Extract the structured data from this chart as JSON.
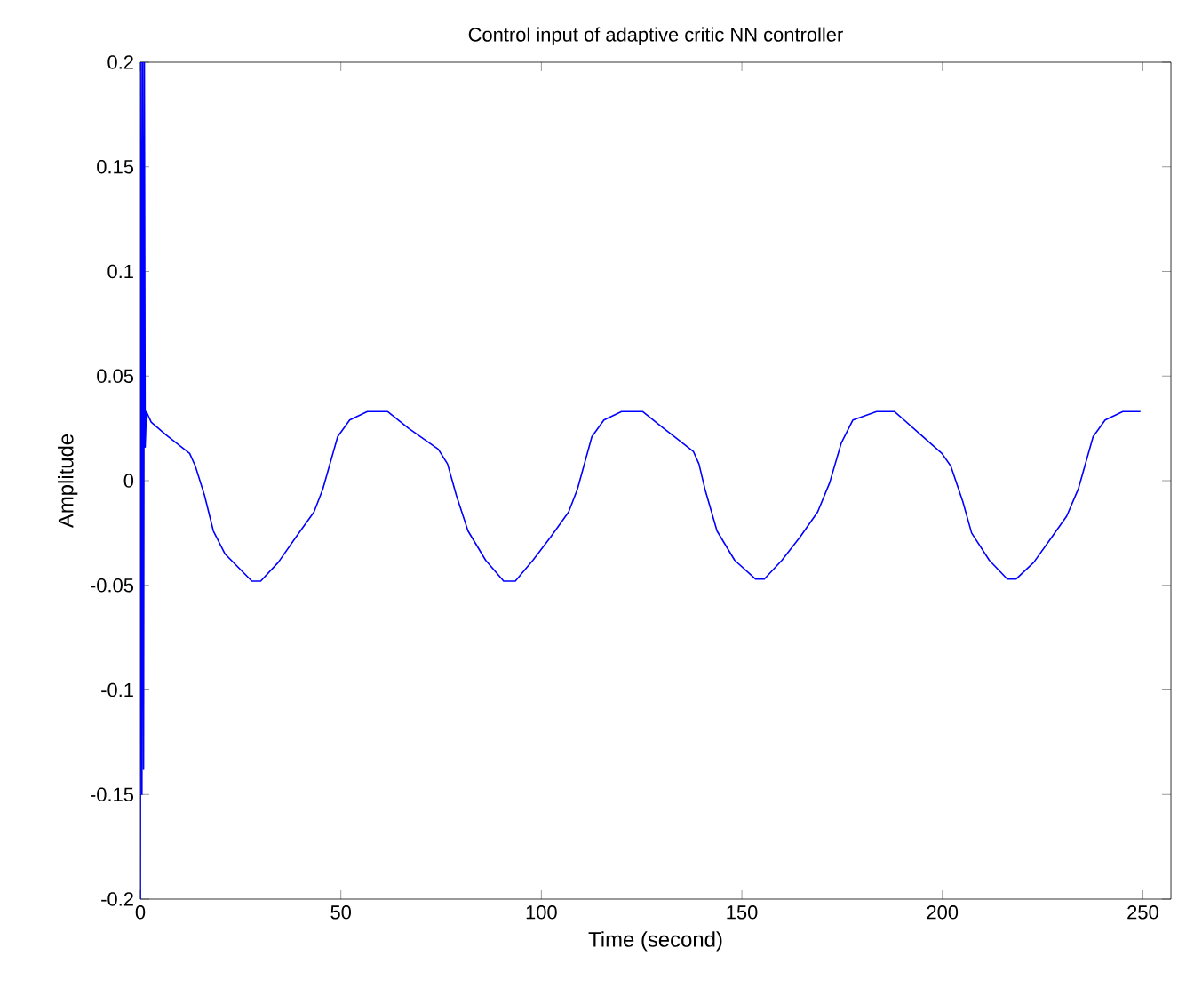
{
  "chart_data": {
    "type": "line",
    "title": "Control input of adaptive critic NN controller",
    "xlabel": "Time (second)",
    "ylabel": "Amplitude",
    "xlim": [
      0,
      257
    ],
    "ylim": [
      -0.2,
      0.2
    ],
    "xticks": [
      0,
      50,
      100,
      150,
      200,
      250
    ],
    "yticks": [
      -0.2,
      -0.15,
      -0.1,
      -0.05,
      0,
      0.05,
      0.1,
      0.15,
      0.2
    ],
    "grid": false,
    "marker": "none",
    "line_style": "solid",
    "series": [
      {
        "color": "#0000ff",
        "x": [
          0,
          0.2,
          0.4,
          0.6,
          0.8,
          1,
          1.2,
          1.5,
          2.7,
          6.3,
          12.3,
          13.7,
          16.0,
          18.2,
          21.1,
          27.8,
          30.0,
          34.4,
          38.8,
          43.3,
          45.5,
          49.2,
          52.2,
          56.6,
          61.7,
          66.9,
          74.3,
          76.6,
          78.8,
          81.7,
          86.1,
          90.6,
          93.5,
          97.9,
          102.3,
          106.8,
          109.0,
          112.6,
          115.6,
          120.0,
          125.3,
          130.5,
          137.9,
          139.3,
          140.8,
          143.8,
          148.2,
          153.4,
          155.6,
          160.0,
          164.5,
          168.9,
          171.9,
          174.8,
          177.7,
          183.6,
          188.1,
          194.0,
          199.9,
          202.1,
          205.1,
          207.3,
          211.7,
          216.2,
          218.4,
          222.8,
          227.3,
          231.0,
          233.9,
          237.6,
          240.6,
          245.0,
          249.4
        ],
        "values": [
          -0.2,
          0.2,
          -0.15,
          0.2,
          -0.138,
          0.2,
          0.016,
          0.033,
          0.028,
          0.022,
          0.013,
          0.007,
          -0.007,
          -0.024,
          -0.035,
          -0.048,
          -0.048,
          -0.039,
          -0.027,
          -0.015,
          -0.004,
          0.021,
          0.029,
          0.033,
          0.033,
          0.025,
          0.015,
          0.008,
          -0.007,
          -0.024,
          -0.038,
          -0.048,
          -0.048,
          -0.038,
          -0.027,
          -0.015,
          -0.004,
          0.021,
          0.029,
          0.033,
          0.033,
          0.025,
          0.014,
          0.008,
          -0.004,
          -0.024,
          -0.038,
          -0.047,
          -0.047,
          -0.038,
          -0.027,
          -0.015,
          -0.001,
          0.018,
          0.029,
          0.033,
          0.033,
          0.023,
          0.013,
          0.007,
          -0.01,
          -0.025,
          -0.038,
          -0.047,
          -0.047,
          -0.039,
          -0.027,
          -0.017,
          -0.004,
          0.021,
          0.029,
          0.033,
          0.033
        ]
      }
    ]
  }
}
